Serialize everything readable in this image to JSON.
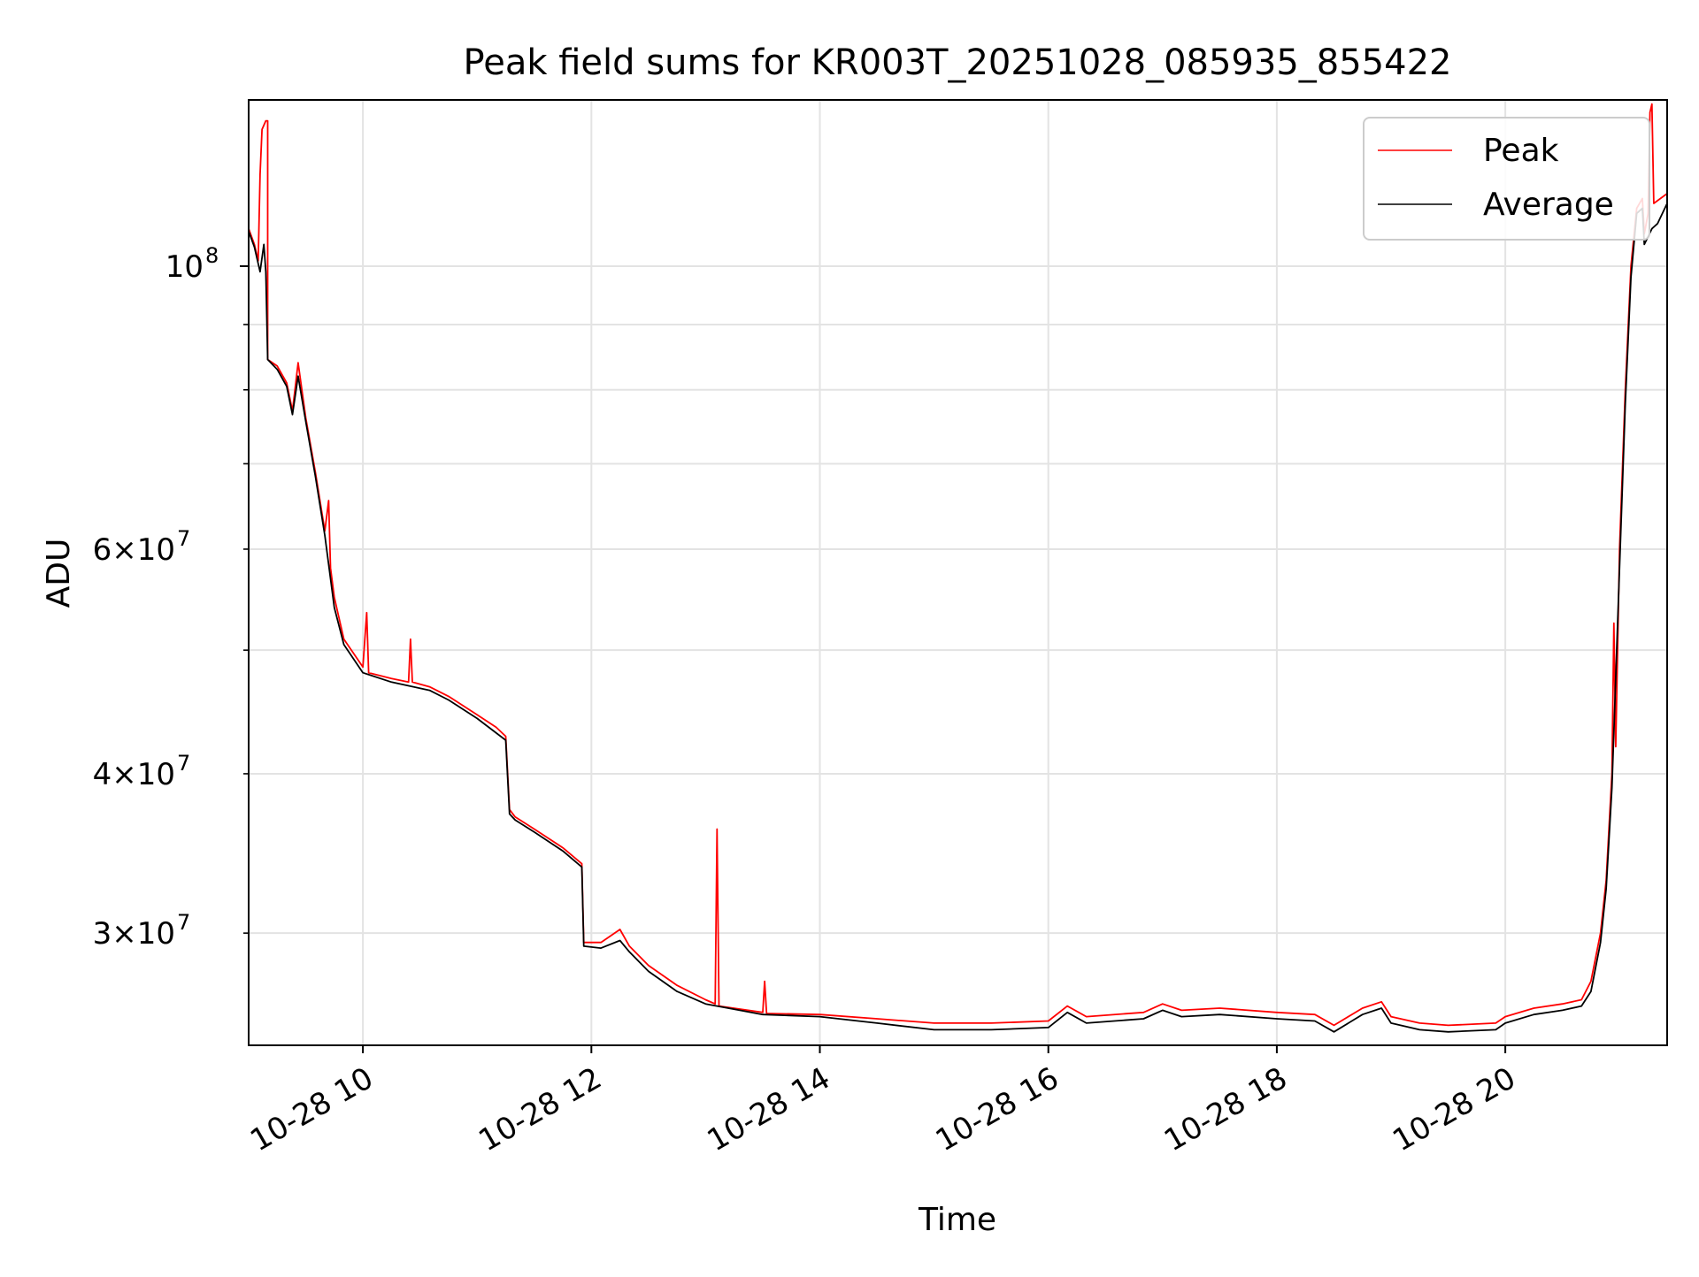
{
  "chart_data": {
    "type": "line",
    "title": "Peak field sums for KR003T_20251028_085935_855422",
    "xlabel": "Time",
    "ylabel": "ADU",
    "x_scale": "time",
    "y_scale": "log",
    "xlim": [
      "2025-10-28 09:00",
      "2025-10-28 21:25"
    ],
    "ylim": [
      24500000,
      135000000
    ],
    "x_ticks": [
      {
        "value": "2025-10-28 10:00",
        "label": "10-28 10"
      },
      {
        "value": "2025-10-28 12:00",
        "label": "10-28 12"
      },
      {
        "value": "2025-10-28 14:00",
        "label": "10-28 14"
      },
      {
        "value": "2025-10-28 16:00",
        "label": "10-28 16"
      },
      {
        "value": "2025-10-28 18:00",
        "label": "10-28 18"
      },
      {
        "value": "2025-10-28 20:00",
        "label": "10-28 20"
      }
    ],
    "y_major_ticks": [
      {
        "value": 100000000,
        "label": "10",
        "exp": "8"
      }
    ],
    "y_minor_ticks": [
      {
        "value": 30000000,
        "coef": "3",
        "exp": "7"
      },
      {
        "value": 40000000,
        "coef": "4",
        "exp": "7"
      },
      {
        "value": 50000000
      },
      {
        "value": 60000000,
        "coef": "6",
        "exp": "7"
      },
      {
        "value": 70000000
      },
      {
        "value": 80000000
      },
      {
        "value": 90000000
      }
    ],
    "grid": true,
    "legend_position": "top-right",
    "series": [
      {
        "name": "Peak",
        "color": "#ff0000",
        "points": [
          [
            "2025-10-28 09:00",
            107000000
          ],
          [
            "2025-10-28 09:03",
            104000000
          ],
          [
            "2025-10-28 09:05",
            101000000
          ],
          [
            "2025-10-28 09:06",
            118000000
          ],
          [
            "2025-10-28 09:07",
            128000000
          ],
          [
            "2025-10-28 09:09",
            130000000
          ],
          [
            "2025-10-28 09:10",
            130000000
          ],
          [
            "2025-10-28 09:10",
            84500000
          ],
          [
            "2025-10-28 09:15",
            83500000
          ],
          [
            "2025-10-28 09:20",
            81000000
          ],
          [
            "2025-10-28 09:23",
            77000000
          ],
          [
            "2025-10-28 09:26",
            84000000
          ],
          [
            "2025-10-28 09:30",
            76000000
          ],
          [
            "2025-10-28 09:35",
            69000000
          ],
          [
            "2025-10-28 09:40",
            62000000
          ],
          [
            "2025-10-28 09:42",
            65500000
          ],
          [
            "2025-10-28 09:43",
            58000000
          ],
          [
            "2025-10-28 09:45",
            55000000
          ],
          [
            "2025-10-28 09:50",
            51000000
          ],
          [
            "2025-10-28 10:00",
            48500000
          ],
          [
            "2025-10-28 10:02",
            53500000
          ],
          [
            "2025-10-28 10:03",
            48000000
          ],
          [
            "2025-10-28 10:15",
            47500000
          ],
          [
            "2025-10-28 10:24",
            47200000
          ],
          [
            "2025-10-28 10:25",
            51000000
          ],
          [
            "2025-10-28 10:26",
            47200000
          ],
          [
            "2025-10-28 10:35",
            46800000
          ],
          [
            "2025-10-28 10:45",
            46000000
          ],
          [
            "2025-10-28 11:00",
            44500000
          ],
          [
            "2025-10-28 11:10",
            43500000
          ],
          [
            "2025-10-28 11:15",
            42800000
          ],
          [
            "2025-10-28 11:17",
            37500000
          ],
          [
            "2025-10-28 11:20",
            37000000
          ],
          [
            "2025-10-28 11:30",
            36200000
          ],
          [
            "2025-10-28 11:45",
            35000000
          ],
          [
            "2025-10-28 11:55",
            34000000
          ],
          [
            "2025-10-28 11:56",
            29500000
          ],
          [
            "2025-10-28 12:05",
            29500000
          ],
          [
            "2025-10-28 12:15",
            30200000
          ],
          [
            "2025-10-28 12:20",
            29300000
          ],
          [
            "2025-10-28 12:30",
            28300000
          ],
          [
            "2025-10-28 12:45",
            27300000
          ],
          [
            "2025-10-28 13:00",
            26600000
          ],
          [
            "2025-10-28 13:05",
            26400000
          ],
          [
            "2025-10-28 13:06",
            36200000
          ],
          [
            "2025-10-28 13:07",
            26300000
          ],
          [
            "2025-10-28 13:30",
            26000000
          ],
          [
            "2025-10-28 13:31",
            27500000
          ],
          [
            "2025-10-28 13:32",
            25950000
          ],
          [
            "2025-10-28 14:00",
            25900000
          ],
          [
            "2025-10-28 14:30",
            25700000
          ],
          [
            "2025-10-28 15:00",
            25500000
          ],
          [
            "2025-10-28 15:30",
            25500000
          ],
          [
            "2025-10-28 16:00",
            25600000
          ],
          [
            "2025-10-28 16:10",
            26300000
          ],
          [
            "2025-10-28 16:20",
            25800000
          ],
          [
            "2025-10-28 16:50",
            26000000
          ],
          [
            "2025-10-28 17:00",
            26400000
          ],
          [
            "2025-10-28 17:10",
            26100000
          ],
          [
            "2025-10-28 17:30",
            26200000
          ],
          [
            "2025-10-28 18:00",
            26000000
          ],
          [
            "2025-10-28 18:20",
            25900000
          ],
          [
            "2025-10-28 18:30",
            25400000
          ],
          [
            "2025-10-28 18:45",
            26200000
          ],
          [
            "2025-10-28 18:55",
            26500000
          ],
          [
            "2025-10-28 19:00",
            25800000
          ],
          [
            "2025-10-28 19:15",
            25500000
          ],
          [
            "2025-10-28 19:30",
            25400000
          ],
          [
            "2025-10-28 19:55",
            25500000
          ],
          [
            "2025-10-28 20:00",
            25800000
          ],
          [
            "2025-10-28 20:15",
            26200000
          ],
          [
            "2025-10-28 20:30",
            26400000
          ],
          [
            "2025-10-28 20:40",
            26600000
          ],
          [
            "2025-10-28 20:45",
            27500000
          ],
          [
            "2025-10-28 20:50",
            30000000
          ],
          [
            "2025-10-28 20:53",
            33000000
          ],
          [
            "2025-10-28 20:56",
            40000000
          ],
          [
            "2025-10-28 20:57",
            52500000
          ],
          [
            "2025-10-28 20:58",
            42000000
          ],
          [
            "2025-10-28 21:00",
            60000000
          ],
          [
            "2025-10-28 21:03",
            80000000
          ],
          [
            "2025-10-28 21:06",
            100000000
          ],
          [
            "2025-10-28 21:09",
            111000000
          ],
          [
            "2025-10-28 21:12",
            113000000
          ],
          [
            "2025-10-28 21:13",
            106000000
          ],
          [
            "2025-10-28 21:15",
            110000000
          ],
          [
            "2025-10-28 21:16",
            132000000
          ],
          [
            "2025-10-28 21:17",
            134000000
          ],
          [
            "2025-10-28 21:18",
            112000000
          ],
          [
            "2025-10-28 21:25",
            114000000
          ]
        ]
      },
      {
        "name": "Average",
        "color": "#000000",
        "points": [
          [
            "2025-10-28 09:00",
            106500000
          ],
          [
            "2025-10-28 09:03",
            103500000
          ],
          [
            "2025-10-28 09:06",
            99000000
          ],
          [
            "2025-10-28 09:08",
            104000000
          ],
          [
            "2025-10-28 09:09",
            99000000
          ],
          [
            "2025-10-28 09:10",
            84500000
          ],
          [
            "2025-10-28 09:15",
            83000000
          ],
          [
            "2025-10-28 09:20",
            80500000
          ],
          [
            "2025-10-28 09:23",
            76500000
          ],
          [
            "2025-10-28 09:26",
            82000000
          ],
          [
            "2025-10-28 09:30",
            75500000
          ],
          [
            "2025-10-28 09:35",
            68500000
          ],
          [
            "2025-10-28 09:40",
            61500000
          ],
          [
            "2025-10-28 09:45",
            54000000
          ],
          [
            "2025-10-28 09:50",
            50500000
          ],
          [
            "2025-10-28 10:00",
            48000000
          ],
          [
            "2025-10-28 10:15",
            47200000
          ],
          [
            "2025-10-28 10:35",
            46500000
          ],
          [
            "2025-10-28 10:45",
            45700000
          ],
          [
            "2025-10-28 11:00",
            44200000
          ],
          [
            "2025-10-28 11:15",
            42500000
          ],
          [
            "2025-10-28 11:17",
            37200000
          ],
          [
            "2025-10-28 11:20",
            36800000
          ],
          [
            "2025-10-28 11:30",
            36000000
          ],
          [
            "2025-10-28 11:45",
            34800000
          ],
          [
            "2025-10-28 11:55",
            33800000
          ],
          [
            "2025-10-28 11:56",
            29300000
          ],
          [
            "2025-10-28 12:05",
            29200000
          ],
          [
            "2025-10-28 12:15",
            29600000
          ],
          [
            "2025-10-28 12:20",
            29000000
          ],
          [
            "2025-10-28 12:30",
            28000000
          ],
          [
            "2025-10-28 12:45",
            27000000
          ],
          [
            "2025-10-28 13:00",
            26400000
          ],
          [
            "2025-10-28 13:30",
            25900000
          ],
          [
            "2025-10-28 14:00",
            25800000
          ],
          [
            "2025-10-28 14:30",
            25500000
          ],
          [
            "2025-10-28 15:00",
            25200000
          ],
          [
            "2025-10-28 15:30",
            25200000
          ],
          [
            "2025-10-28 16:00",
            25300000
          ],
          [
            "2025-10-28 16:10",
            26000000
          ],
          [
            "2025-10-28 16:20",
            25500000
          ],
          [
            "2025-10-28 16:50",
            25700000
          ],
          [
            "2025-10-28 17:00",
            26100000
          ],
          [
            "2025-10-28 17:10",
            25800000
          ],
          [
            "2025-10-28 17:30",
            25900000
          ],
          [
            "2025-10-28 18:00",
            25700000
          ],
          [
            "2025-10-28 18:20",
            25600000
          ],
          [
            "2025-10-28 18:30",
            25100000
          ],
          [
            "2025-10-28 18:45",
            25900000
          ],
          [
            "2025-10-28 18:55",
            26200000
          ],
          [
            "2025-10-28 19:00",
            25500000
          ],
          [
            "2025-10-28 19:15",
            25200000
          ],
          [
            "2025-10-28 19:30",
            25100000
          ],
          [
            "2025-10-28 19:55",
            25200000
          ],
          [
            "2025-10-28 20:00",
            25500000
          ],
          [
            "2025-10-28 20:15",
            25900000
          ],
          [
            "2025-10-28 20:30",
            26100000
          ],
          [
            "2025-10-28 20:40",
            26300000
          ],
          [
            "2025-10-28 20:45",
            27000000
          ],
          [
            "2025-10-28 20:50",
            29500000
          ],
          [
            "2025-10-28 20:53",
            32500000
          ],
          [
            "2025-10-28 20:56",
            39000000
          ],
          [
            "2025-10-28 21:00",
            58000000
          ],
          [
            "2025-10-28 21:03",
            78000000
          ],
          [
            "2025-10-28 21:06",
            98000000
          ],
          [
            "2025-10-28 21:09",
            110000000
          ],
          [
            "2025-10-28 21:12",
            111000000
          ],
          [
            "2025-10-28 21:13",
            104000000
          ],
          [
            "2025-10-28 21:17",
            107000000
          ],
          [
            "2025-10-28 21:20",
            108000000
          ],
          [
            "2025-10-28 21:25",
            112000000
          ]
        ]
      }
    ]
  }
}
